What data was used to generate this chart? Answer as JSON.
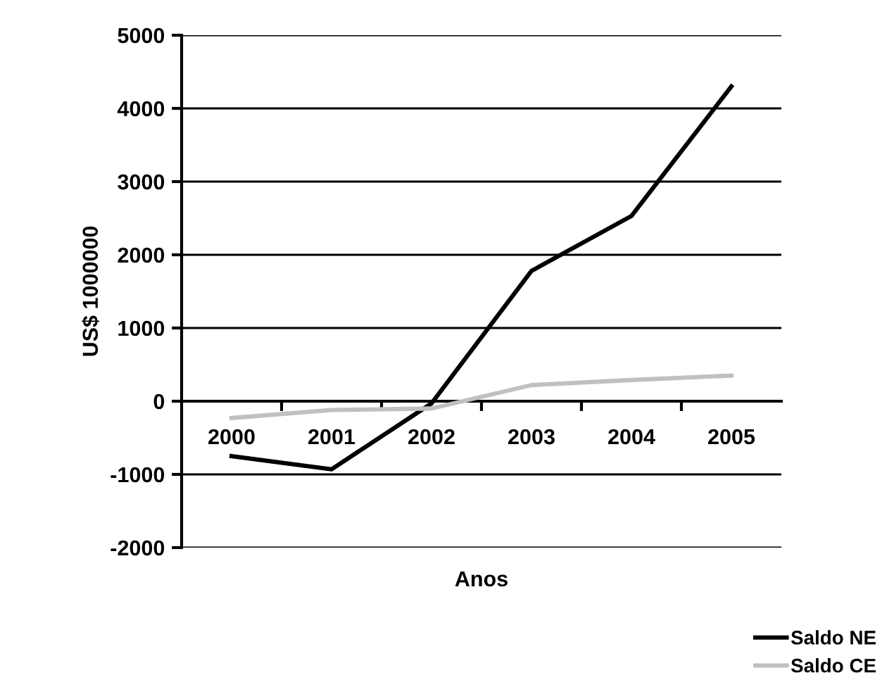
{
  "chart_data": {
    "type": "line",
    "xlabel": "Anos",
    "ylabel": "US$ 1000000",
    "categories": [
      "2000",
      "2001",
      "2002",
      "2003",
      "2004",
      "2005"
    ],
    "series": [
      {
        "name": "Saldo NE",
        "color": "#000000",
        "values": [
          -750,
          -930,
          -30,
          1780,
          2530,
          4300
        ]
      },
      {
        "name": "Saldo CE",
        "color": "#c0c0c0",
        "values": [
          -230,
          -120,
          -100,
          220,
          290,
          350
        ]
      }
    ],
    "ylim": [
      -2000,
      5000
    ],
    "yticks": [
      -2000,
      -1000,
      0,
      1000,
      2000,
      3000,
      4000,
      5000
    ],
    "grid": "y",
    "legend": "bottom right",
    "marker": "none",
    "line_style": "solid"
  }
}
